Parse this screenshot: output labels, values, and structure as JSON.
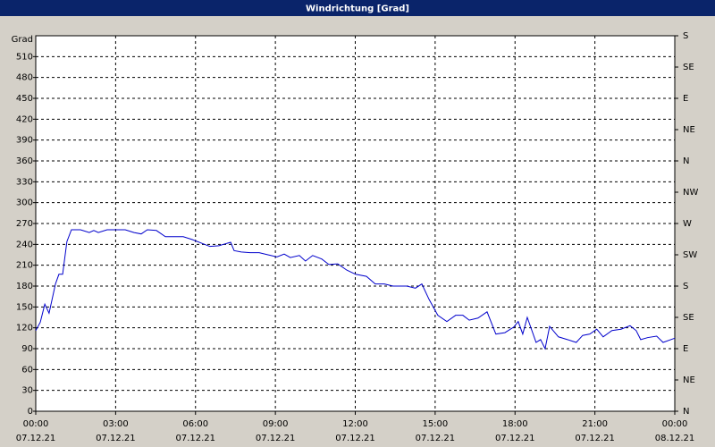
{
  "chart_data": {
    "type": "line",
    "title": "Windrichtung [Grad]",
    "ylabel": "Grad",
    "x": [
      0,
      0.17,
      0.34,
      0.5,
      0.74,
      0.87,
      1.01,
      1.17,
      1.34,
      1.68,
      2.01,
      2.18,
      2.35,
      2.68,
      3.02,
      3.36,
      3.69,
      3.96,
      4.19,
      4.53,
      4.87,
      5.2,
      5.54,
      5.87,
      6.21,
      6.54,
      6.88,
      7.05,
      7.32,
      7.45,
      7.72,
      8.05,
      8.39,
      8.72,
      9.06,
      9.33,
      9.56,
      9.9,
      10.13,
      10.4,
      10.74,
      11.01,
      11.34,
      11.68,
      12.01,
      12.42,
      12.75,
      13.09,
      13.42,
      13.93,
      14.26,
      14.5,
      14.77,
      15.1,
      15.44,
      15.77,
      16.04,
      16.28,
      16.61,
      16.95,
      17.28,
      17.62,
      17.95,
      18.12,
      18.29,
      18.46,
      18.79,
      18.96,
      19.13,
      19.3,
      19.63,
      19.97,
      20.3,
      20.54,
      20.81,
      21.07,
      21.31,
      21.64,
      21.98,
      22.32,
      22.55,
      22.72,
      22.99,
      23.32,
      23.56,
      24
    ],
    "series": [
      {
        "color": "#0000cc",
        "values": [
          116,
          128,
          154,
          141,
          183,
          197,
          197,
          244,
          261,
          261,
          257,
          260,
          257,
          261,
          261,
          261,
          257,
          255,
          261,
          260,
          251,
          251,
          251,
          247,
          242,
          237,
          238,
          240,
          243,
          231,
          229,
          228,
          228,
          225,
          222,
          226,
          221,
          224,
          216,
          224,
          219,
          211,
          212,
          203,
          197,
          194,
          183,
          183,
          180,
          180,
          177,
          183,
          161,
          138,
          129,
          138,
          138,
          131,
          134,
          143,
          111,
          113,
          121,
          129,
          111,
          135,
          99,
          103,
          90,
          122,
          107,
          103,
          99,
          109,
          111,
          118,
          107,
          116,
          118,
          123,
          116,
          103,
          106,
          108,
          99,
          105
        ]
      }
    ],
    "xlim": [
      0,
      24
    ],
    "xticks": [
      {
        "value": 0,
        "label": "00:00"
      },
      {
        "value": 3,
        "label": "03:00"
      },
      {
        "value": 6,
        "label": "06:00"
      },
      {
        "value": 9,
        "label": "09:00"
      },
      {
        "value": 12,
        "label": "12:00"
      },
      {
        "value": 15,
        "label": "15:00"
      },
      {
        "value": 18,
        "label": "18:00"
      },
      {
        "value": 21,
        "label": "21:00"
      },
      {
        "value": 24,
        "label": "00:00"
      }
    ],
    "xtick_dates": [
      "07.12.21",
      "07.12.21",
      "07.12.21",
      "07.12.21",
      "07.12.21",
      "07.12.21",
      "07.12.21",
      "07.12.21",
      "08.12.21"
    ],
    "ylim": [
      0,
      540
    ],
    "yticks": [
      0,
      30,
      60,
      90,
      120,
      150,
      180,
      210,
      240,
      270,
      300,
      330,
      360,
      390,
      420,
      450,
      480,
      510
    ],
    "y2lim": [
      0,
      540
    ],
    "y2ticks": [
      {
        "value": 0,
        "label": "N"
      },
      {
        "value": 45,
        "label": "NE"
      },
      {
        "value": 90,
        "label": "E"
      },
      {
        "value": 135,
        "label": "SE"
      },
      {
        "value": 180,
        "label": "S"
      },
      {
        "value": 225,
        "label": "SW"
      },
      {
        "value": 270,
        "label": "W"
      },
      {
        "value": 315,
        "label": "NW"
      },
      {
        "value": 360,
        "label": "N"
      },
      {
        "value": 405,
        "label": "NE"
      },
      {
        "value": 450,
        "label": "E"
      },
      {
        "value": 495,
        "label": "SE"
      },
      {
        "value": 540,
        "label": "S"
      }
    ],
    "grid": true
  }
}
